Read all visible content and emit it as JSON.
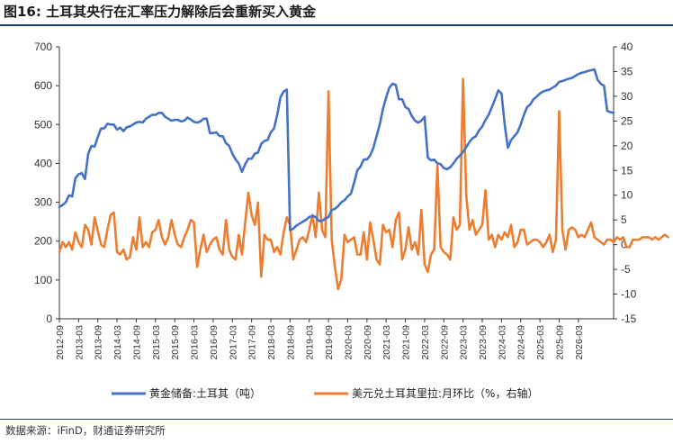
{
  "figure": {
    "title": "图16: 土耳其央行在汇率压力解除后会重新买入黄金",
    "source": "数据来源：iFinD，财通证券研究所"
  },
  "chart_data": {
    "type": "line",
    "y_left": {
      "range": [
        0,
        700
      ],
      "ticks": [
        "0",
        "100",
        "200",
        "300",
        "400",
        "500",
        "600",
        "700"
      ]
    },
    "y_right": {
      "range": [
        -15,
        40
      ],
      "ticks": [
        "-15",
        "-10",
        "-5",
        "0",
        "5",
        "10",
        "15",
        "20",
        "25",
        "30",
        "35",
        "40"
      ]
    },
    "x_ticks": [
      "2012-09",
      "2013-03",
      "2013-09",
      "2014-03",
      "2014-09",
      "2015-03",
      "2015-09",
      "2016-03",
      "2016-09",
      "2017-03",
      "2017-09",
      "2018-03",
      "2018-09",
      "2019-03",
      "2019-09",
      "2020-03",
      "2020-09",
      "2021-03",
      "2021-09",
      "2022-03",
      "2022-09",
      "2023-03",
      "2023-09",
      "2024-03",
      "2024-09",
      "2025-03",
      "2025-09",
      "2026-03"
    ],
    "x_start_month": "2012-09",
    "series": [
      {
        "name": "黄金储备:土耳其（吨）",
        "axis": "left",
        "color": "#4472c4",
        "values": [
          288,
          293,
          300,
          318,
          315,
          362,
          372,
          375,
          360,
          425,
          445,
          443,
          468,
          490,
          490,
          502,
          500,
          500,
          487,
          492,
          483,
          493,
          495,
          500,
          505,
          507,
          505,
          515,
          520,
          525,
          525,
          530,
          530,
          520,
          515,
          510,
          512,
          512,
          508,
          510,
          518,
          513,
          507,
          505,
          508,
          515,
          515,
          478,
          478,
          480,
          470,
          470,
          452,
          445,
          425,
          410,
          400,
          378,
          398,
          412,
          412,
          425,
          428,
          450,
          458,
          460,
          480,
          490,
          525,
          570,
          585,
          590,
          228,
          232,
          240,
          245,
          250,
          255,
          262,
          265,
          262,
          252,
          252,
          258,
          262,
          280,
          283,
          290,
          300,
          305,
          315,
          322,
          350,
          382,
          392,
          410,
          410,
          420,
          440,
          470,
          500,
          540,
          570,
          595,
          605,
          602,
          565,
          565,
          545,
          540,
          522,
          510,
          505,
          510,
          520,
          415,
          408,
          410,
          400,
          398,
          388,
          385,
          390,
          400,
          412,
          420,
          430,
          442,
          455,
          465,
          470,
          485,
          495,
          512,
          525,
          545,
          565,
          588,
          580,
          500,
          440,
          460,
          470,
          480,
          500,
          525,
          545,
          552,
          565,
          572,
          580,
          585,
          588,
          590,
          595,
          600,
          610,
          612,
          615,
          618,
          620,
          625,
          630,
          633,
          635,
          638,
          640,
          642,
          615,
          605,
          600,
          535,
          532,
          530
        ]
      },
      {
        "name": "美元兑土耳其里拉:月环比（%，右轴）",
        "axis": "right",
        "color": "#ed7d31",
        "values": [
          -1.5,
          0.5,
          -0.5,
          0.5,
          -1,
          2.5,
          0.5,
          -0.5,
          4,
          3,
          0,
          5.5,
          2.8,
          0,
          -0.5,
          3,
          6,
          6.5,
          -1.5,
          -2,
          -1,
          -3,
          -2.5,
          1.5,
          -1,
          5.5,
          -0.5,
          0.5,
          -0.5,
          2.5,
          3,
          5,
          1.5,
          0,
          1.5,
          5,
          2,
          0,
          -0.5,
          1.5,
          3,
          5,
          4.5,
          -4.5,
          -1,
          2,
          -1.5,
          0,
          1,
          1.5,
          -1,
          -2,
          5,
          -1,
          -2.5,
          -3,
          2,
          -2,
          4.5,
          10.5,
          6,
          4,
          8.5,
          -6.5,
          2,
          1,
          1,
          -1.5,
          -0.5,
          -2,
          2.5,
          5.5,
          4,
          -3,
          -1,
          1,
          1.5,
          0.5,
          3,
          6,
          1.5,
          10.5,
          3,
          1.5,
          31,
          1,
          -4.5,
          -9,
          -7,
          2,
          0.5,
          1,
          1.5,
          -2,
          -2,
          2.5,
          -3,
          4.5,
          1,
          -3,
          -4,
          4,
          2.5,
          3,
          -0.5,
          5,
          6.5,
          -3,
          -1,
          3.5,
          -1,
          0.5,
          -2,
          7,
          -4,
          -5.5,
          -2,
          -1,
          16,
          -0.5,
          -1.5,
          -2,
          -3,
          5.5,
          3,
          4,
          33.5,
          10,
          3,
          5,
          2,
          3,
          4,
          11,
          1,
          2,
          -0.5,
          2,
          1,
          2.5,
          1.5,
          4,
          -0.5,
          0.5,
          3,
          3,
          0,
          0.5,
          1,
          1,
          0.5,
          -0.5,
          0.5,
          2,
          -1.5,
          1,
          27,
          3,
          -1,
          3,
          3.5,
          3,
          1.5,
          2,
          1.5,
          3,
          4.5,
          1.5,
          1,
          0.5,
          0,
          1,
          1,
          0.5,
          1.5,
          1,
          1.5,
          -0.5,
          -0.5,
          1,
          1,
          1,
          1.5,
          1.5,
          1.5,
          1,
          1.5,
          1,
          1.5,
          2,
          1.5
        ]
      }
    ],
    "legend_position": "bottom",
    "grid": false
  }
}
